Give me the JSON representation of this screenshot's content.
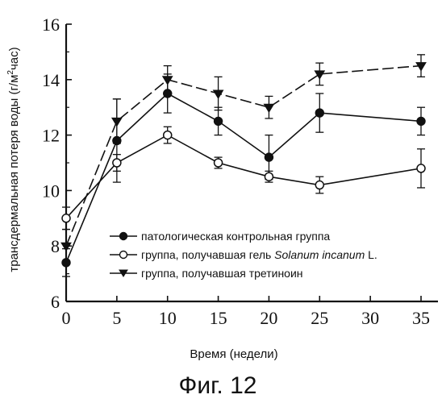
{
  "figure": {
    "caption": "Фиг. 12"
  },
  "chart_data": {
    "type": "line",
    "title": "",
    "xlabel": "Время (недели)",
    "ylabel": "трансдермальная потеря воды (г/м",
    "ylabel_sup": "2",
    "ylabel_tail": "час)",
    "xlim": [
      0,
      35
    ],
    "ylim": [
      6,
      16
    ],
    "xticks": [
      0,
      5,
      10,
      15,
      20,
      25,
      30,
      35
    ],
    "yticks": [
      6,
      8,
      10,
      12,
      14,
      16
    ],
    "grid": false,
    "legend_position": "lower-right",
    "x": [
      0,
      5,
      10,
      15,
      20,
      25,
      35
    ],
    "series": [
      {
        "name": "патологическая контрольная группа",
        "marker": "filled-circle",
        "values": [
          7.4,
          11.8,
          13.5,
          12.5,
          11.2,
          12.8,
          12.5
        ],
        "errors": [
          0.5,
          1.5,
          0.7,
          0.5,
          0.8,
          0.7,
          0.5
        ]
      },
      {
        "name_prefix": "группа, получавшая гель ",
        "name_italic": "Solanum incanum",
        "name_suffix": " L.",
        "marker": "open-circle",
        "values": [
          9.0,
          11.0,
          12.0,
          11.0,
          10.5,
          10.2,
          10.8
        ],
        "errors": [
          0.4,
          0.3,
          0.3,
          0.2,
          0.2,
          0.3,
          0.7
        ]
      },
      {
        "name": "группа, получавшая третиноин",
        "marker": "filled-triangle-down",
        "values": [
          8.0,
          12.5,
          14.0,
          13.5,
          13.0,
          14.2,
          14.5
        ],
        "errors": [
          0.6,
          0.8,
          0.5,
          0.6,
          0.4,
          0.4,
          0.4
        ]
      }
    ]
  }
}
